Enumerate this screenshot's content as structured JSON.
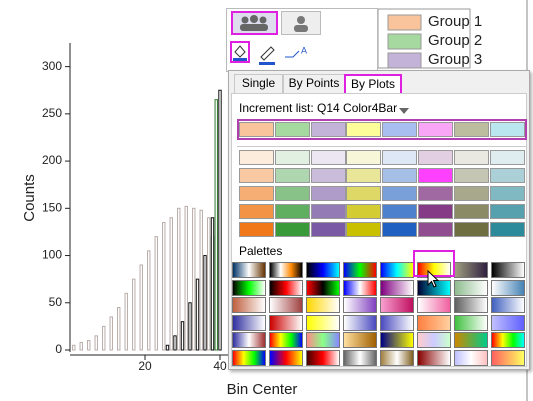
{
  "chart_data": {
    "type": "bar",
    "xlabel": "Bin Center",
    "ylabel": "Counts",
    "xlim": [
      0,
      120
    ],
    "ylim": [
      0,
      325
    ],
    "xticks": [
      20,
      40
    ],
    "yticks": [
      0,
      50,
      100,
      150,
      200,
      250,
      300
    ],
    "series": [
      {
        "name": "Group 1",
        "color": "#f9c49b",
        "edgecolor": "#b8aca8",
        "x": [
          1,
          3,
          5,
          7,
          9,
          11,
          13,
          15,
          17,
          19,
          21,
          23,
          25,
          27,
          29,
          31,
          33,
          35,
          37,
          39
        ],
        "values": [
          5,
          8,
          10,
          15,
          25,
          35,
          45,
          60,
          75,
          90,
          105,
          120,
          135,
          140,
          150,
          152,
          150,
          148,
          140,
          130
        ]
      },
      {
        "name": "Group 2",
        "color": "#a6d99f",
        "edgecolor": "#2f7a2f",
        "x": [
          38,
          39
        ],
        "values": [
          120,
          265
        ]
      },
      {
        "name": "Group 3",
        "color": "#c3b3d8",
        "edgecolor": "#111111",
        "x": [
          26,
          28,
          30,
          32,
          34,
          36,
          38,
          40
        ],
        "values": [
          5,
          15,
          30,
          50,
          75,
          100,
          140,
          275
        ]
      }
    ]
  },
  "popup": {
    "tabs": [
      "Single",
      "By Points",
      "By Plots"
    ],
    "increment_label": "Increment list: Q14 Color4Bar",
    "increment_colors": [
      "#f9c49b",
      "#a6d99f",
      "#c3b3d8",
      "#fdfd9a",
      "#a8bdf0",
      "#f8a6f5",
      "#bcbc9e",
      "#b9e6ef"
    ],
    "palettes_label": "Palettes"
  }
}
